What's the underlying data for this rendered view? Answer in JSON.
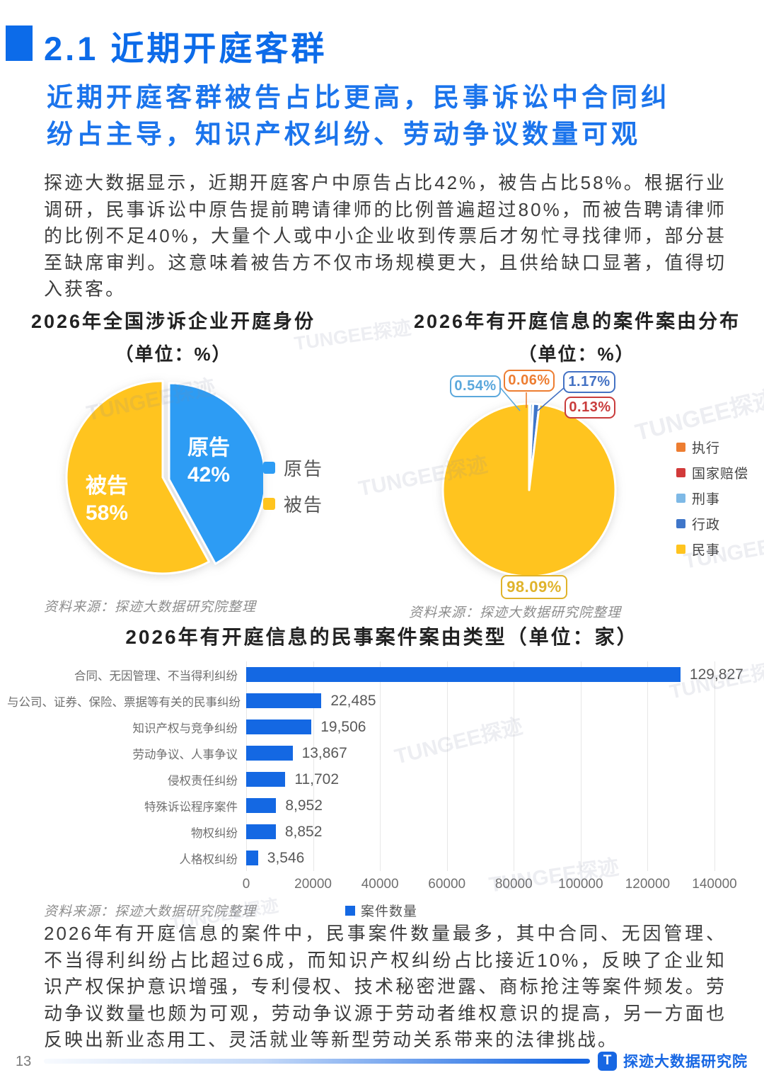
{
  "page": {
    "section_title": "2.1 近期开庭客群",
    "subtitle_lines": [
      "近期开庭客群被告占比更高，民事诉讼中合同纠",
      "纷占主导，知识产权纠纷、劳动争议数量可观"
    ],
    "intro_paragraph": "探迹大数据显示，近期开庭客户中原告占比42%，被告占比58%。根据行业调研，民事诉讼中原告提前聘请律师的比例普遍超过80%，而被告聘请律师的比例不足40%，大量个人或中小企业收到传票后才匆忙寻找律师，部分甚至缺席审判。这意味着被告方不仅市场规模更大，且供给缺口显著，值得切入获客。",
    "closing_paragraph": "2026年有开庭信息的案件中，民事案件数量最多，其中合同、无因管理、不当得利纠纷占比超过6成，而知识产权纠纷占比接近10%，反映了企业知识产权保护意识增强，专利侵权、技术秘密泄露、商标抢注等案件频发。劳动争议数量也颇为可观，劳动争议源于劳动者维权意识的提高，另一方面也反映出新业态用工、灵活就业等新型劳动关系带来的法律挑战。",
    "source_note": "资料来源：探迹大数据研究院整理",
    "page_number": "13",
    "footer_brand": "探迹大数据研究院",
    "footer_logo_letter": "T",
    "watermark": "TUNGEE探迹"
  },
  "chart_data": [
    {
      "type": "pie",
      "title": "2026年全国涉诉企业开庭身份",
      "unit_label": "（单位：%）",
      "labels": [
        "原告",
        "被告"
      ],
      "values": [
        42,
        58
      ],
      "pct_labels": [
        "42%",
        "58%"
      ],
      "colors": [
        "#2D9CF4",
        "#FFC41F"
      ],
      "legend_position": "right"
    },
    {
      "type": "pie",
      "title": "2026年有开庭信息的案件案由分布",
      "unit_label": "（单位：%）",
      "labels": [
        "执行",
        "国家赔偿",
        "刑事",
        "行政",
        "民事"
      ],
      "values": [
        0.06,
        0.13,
        0.54,
        1.17,
        98.09
      ],
      "colors": [
        "#ED7D31",
        "#D23A3A",
        "#7EB9E6",
        "#3F76C9",
        "#FFC41F"
      ],
      "callouts": [
        {
          "text": "0.54%",
          "color": "#5BA8DC"
        },
        {
          "text": "0.06%",
          "color": "#ED7D31"
        },
        {
          "text": "1.17%",
          "color": "#4472C4"
        },
        {
          "text": "0.13%",
          "color": "#C93C3C"
        },
        {
          "text": "98.09%",
          "color": "#E0B32B"
        }
      ],
      "legend_position": "right"
    },
    {
      "type": "bar",
      "title": "2026年有开庭信息的民事案件案由类型（单位：家）",
      "categories": [
        "合同、无因管理、不当得利纠纷",
        "与公司、证券、保险、票据等有关的民事纠纷",
        "知识产权与竞争纠纷",
        "劳动争议、人事争议",
        "侵权责任纠纷",
        "特殊诉讼程序案件",
        "物权纠纷",
        "人格权纠纷"
      ],
      "values": [
        129827,
        22485,
        19506,
        13867,
        11702,
        8952,
        8852,
        3546
      ],
      "value_labels": [
        "129,827",
        "22,485",
        "19,506",
        "13,867",
        "11,702",
        "8,952",
        "8,852",
        "3,546"
      ],
      "xlim": [
        0,
        140000
      ],
      "ticks": [
        "0",
        "20000",
        "40000",
        "60000",
        "80000",
        "100000",
        "120000",
        "140000"
      ],
      "grid": true,
      "legend": "案件数量",
      "bar_color": "#1468E3",
      "xlabel": "",
      "ylabel": ""
    }
  ]
}
